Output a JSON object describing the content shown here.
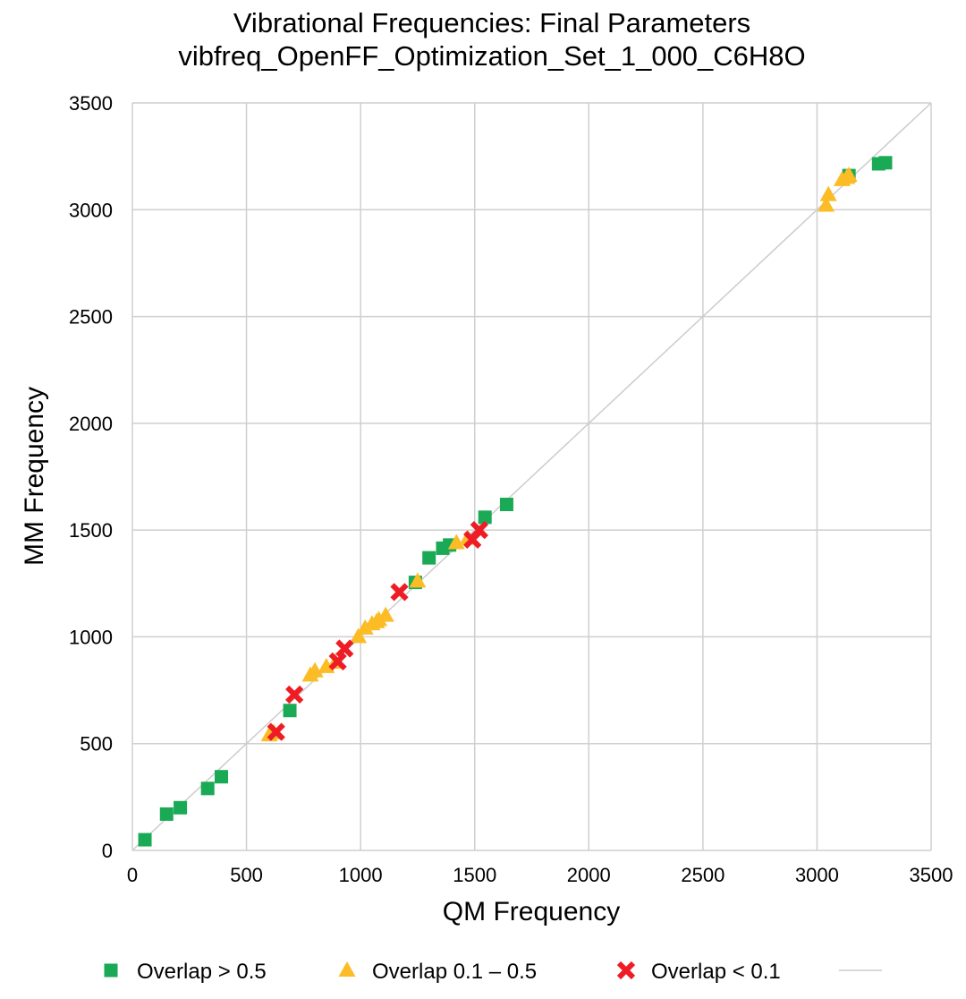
{
  "chart_data": {
    "type": "scatter",
    "title": "Vibrational Frequencies: Final Parameters",
    "subtitle": "vibfreq_OpenFF_Optimization_Set_1_000_C6H8O",
    "xlabel": "QM Frequency",
    "ylabel": "MM Frequency",
    "xlim": [
      0,
      3500
    ],
    "ylim": [
      0,
      3500
    ],
    "xticks": [
      "0",
      "500",
      "1000",
      "1500",
      "2000",
      "2500",
      "3000",
      "3500"
    ],
    "yticks": [
      "0",
      "500",
      "1000",
      "1500",
      "2000",
      "2500",
      "3000",
      "3500"
    ],
    "grid": true,
    "legend_position": "bottom",
    "reference_line": {
      "x": [
        0,
        3500
      ],
      "y": [
        0,
        3500
      ],
      "color": "#cccccc"
    },
    "series": [
      {
        "name": "Overlap > 0.5",
        "marker": "square",
        "color": "#1aaa55",
        "points": [
          [
            55,
            50
          ],
          [
            150,
            170
          ],
          [
            210,
            200
          ],
          [
            330,
            290
          ],
          [
            390,
            345
          ],
          [
            690,
            655
          ],
          [
            1240,
            1255
          ],
          [
            1300,
            1370
          ],
          [
            1360,
            1415
          ],
          [
            1390,
            1430
          ],
          [
            1545,
            1560
          ],
          [
            1640,
            1620
          ],
          [
            3140,
            3160
          ],
          [
            3270,
            3215
          ],
          [
            3300,
            3220
          ]
        ]
      },
      {
        "name": "Overlap 0.1 – 0.5",
        "marker": "triangle",
        "color": "#fbbc26",
        "points": [
          [
            600,
            540
          ],
          [
            620,
            550
          ],
          [
            780,
            820
          ],
          [
            800,
            840
          ],
          [
            850,
            860
          ],
          [
            890,
            880
          ],
          [
            990,
            1000
          ],
          [
            1020,
            1040
          ],
          [
            1050,
            1060
          ],
          [
            1070,
            1070
          ],
          [
            1080,
            1080
          ],
          [
            1110,
            1100
          ],
          [
            1250,
            1260
          ],
          [
            1420,
            1440
          ],
          [
            1470,
            1460
          ],
          [
            3040,
            3020
          ],
          [
            3050,
            3070
          ],
          [
            3110,
            3140
          ],
          [
            3130,
            3150
          ],
          [
            3140,
            3160
          ]
        ]
      },
      {
        "name": "Overlap < 0.1",
        "marker": "x",
        "color": "#ee1c25",
        "points": [
          [
            630,
            555
          ],
          [
            710,
            730
          ],
          [
            900,
            885
          ],
          [
            930,
            945
          ],
          [
            1170,
            1210
          ],
          [
            1490,
            1455
          ],
          [
            1520,
            1500
          ]
        ]
      }
    ]
  }
}
